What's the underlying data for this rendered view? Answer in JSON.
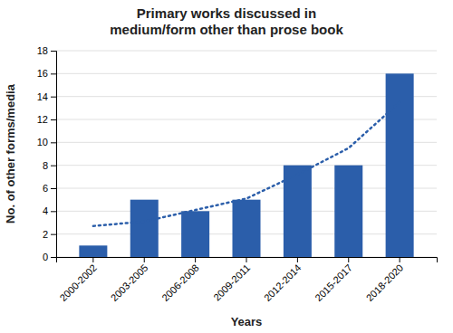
{
  "chart_data": {
    "type": "bar",
    "title": "Primary works discussed in\nmedium/form other than prose book",
    "xlabel": "Years",
    "ylabel": "No. of other forms/media",
    "categories": [
      "2000-2002",
      "2003-2005",
      "2006-2008",
      "2009-2011",
      "2012-2014",
      "2015-2017",
      "2018-2020"
    ],
    "series": [
      {
        "type": "bar",
        "color": "#2B5EAA",
        "values": [
          1,
          5,
          4,
          5,
          8,
          8,
          16
        ]
      },
      {
        "type": "line",
        "color": "#2B5EAA",
        "line_style": "dotted",
        "values": [
          2.7,
          3.1,
          4.1,
          5.1,
          7.2,
          9.5,
          13.5
        ]
      }
    ],
    "ylim": [
      0,
      18
    ],
    "yticks": [
      0,
      2,
      4,
      6,
      8,
      10,
      12,
      14,
      16,
      18
    ],
    "grid": true
  }
}
